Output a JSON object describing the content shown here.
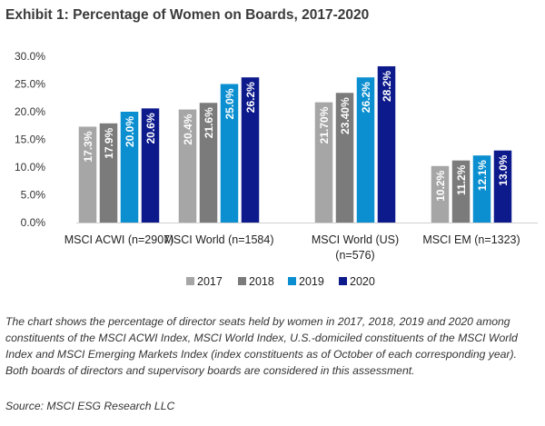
{
  "title": "Exhibit 1:  Percentage of Women on Boards, 2017-2020",
  "caption": "The chart shows the percentage of director seats held by women in 2017, 2018, 2019 and 2020 among constituents of the MSCI ACWI Index, MSCI World Index, U.S.-domiciled constituents of the MSCI World Index and MSCI Emerging Markets Index (index constituents as of October of each corresponding year).  Both boards of directors and supervisory boards are considered in this assessment.",
  "source": "Source: MSCI ESG Research LLC",
  "chart_data": {
    "type": "bar",
    "title": "Exhibit 1:  Percentage of Women on Boards, 2017-2020",
    "ylim": [
      0,
      30
    ],
    "yticks": [
      "0.0%",
      "5.0%",
      "10.0%",
      "15.0%",
      "20.0%",
      "25.0%",
      "30.0%"
    ],
    "grid": false,
    "legend_position": "bottom",
    "categories": [
      [
        "MSCI ACWI (n=2907)"
      ],
      [
        "MSCI World (n=1584)"
      ],
      [
        "MSCI World (US)",
        "(n=576)"
      ],
      [
        "MSCI EM (n=1323)"
      ]
    ],
    "series": [
      {
        "name": "2017",
        "color": "#a6a6a6",
        "values": [
          17.3,
          20.4,
          21.7,
          10.2
        ],
        "labels": [
          "17.3%",
          "20.4%",
          "21.70%",
          "10.2%"
        ]
      },
      {
        "name": "2018",
        "color": "#7b7b7b",
        "values": [
          17.9,
          21.6,
          23.4,
          11.2
        ],
        "labels": [
          "17.9%",
          "21.6%",
          "23.40%",
          "11.2%"
        ]
      },
      {
        "name": "2019",
        "color": "#0b8fd0",
        "values": [
          20.0,
          25.0,
          26.2,
          12.1
        ],
        "labels": [
          "20.0%",
          "25.0%",
          "26.2%",
          "12.1%"
        ]
      },
      {
        "name": "2020",
        "color": "#0d1a8c",
        "values": [
          20.6,
          26.2,
          28.2,
          13.0
        ],
        "labels": [
          "20.6%",
          "26.2%",
          "28.2%",
          "13.0%"
        ]
      }
    ]
  }
}
